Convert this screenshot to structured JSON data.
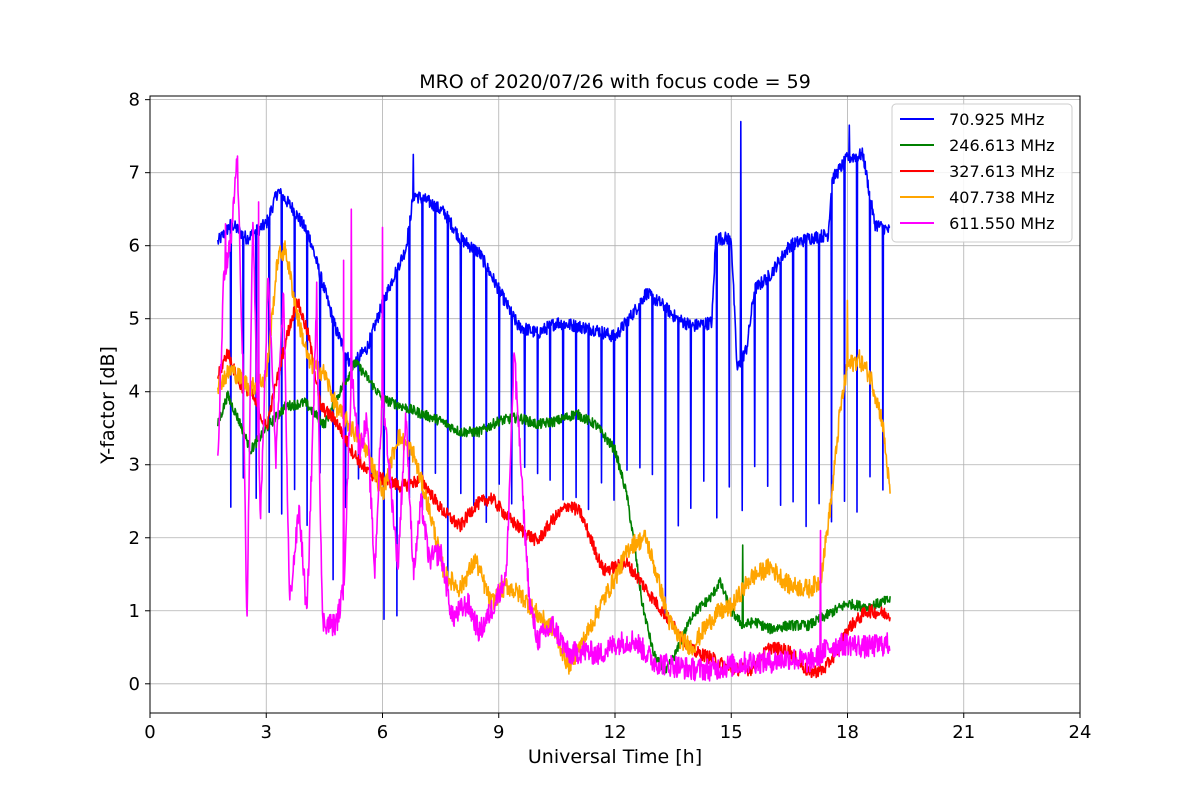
{
  "chart_data": {
    "type": "line",
    "title": "MRO of 2020/07/26 with focus code = 59",
    "xlabel": "Universal Time [h]",
    "ylabel": "Y-factor [dB]",
    "xlim": [
      0,
      24
    ],
    "ylim": [
      -0.4,
      8.05
    ],
    "xticks": [
      0,
      3,
      6,
      9,
      12,
      15,
      18,
      21,
      24
    ],
    "yticks": [
      0,
      1,
      2,
      3,
      4,
      5,
      6,
      7,
      8
    ],
    "grid": true,
    "legend_position": "top-right",
    "series": [
      {
        "name": " 70.925 MHz",
        "color": "#0000ff",
        "noise": 0.09,
        "dips": {
          "start": 1.75,
          "step": 0.33,
          "end": 19.0,
          "floor": 2.6
        },
        "points": [
          [
            1.75,
            6.05
          ],
          [
            2.1,
            6.3
          ],
          [
            2.5,
            6.1
          ],
          [
            3.0,
            6.3
          ],
          [
            3.3,
            6.75
          ],
          [
            3.7,
            6.5
          ],
          [
            4.1,
            6.15
          ],
          [
            4.5,
            5.4
          ],
          [
            4.8,
            4.85
          ],
          [
            5.2,
            4.35
          ],
          [
            5.6,
            4.6
          ],
          [
            6.0,
            5.2
          ],
          [
            6.3,
            5.6
          ],
          [
            6.6,
            5.95
          ],
          [
            6.8,
            6.7
          ],
          [
            7.2,
            6.6
          ],
          [
            7.6,
            6.45
          ],
          [
            8.0,
            6.1
          ],
          [
            8.5,
            5.9
          ],
          [
            9.0,
            5.4
          ],
          [
            9.5,
            4.9
          ],
          [
            10.0,
            4.8
          ],
          [
            10.5,
            4.95
          ],
          [
            11.0,
            4.9
          ],
          [
            11.5,
            4.85
          ],
          [
            12.0,
            4.75
          ],
          [
            12.5,
            5.1
          ],
          [
            12.8,
            5.35
          ],
          [
            13.2,
            5.2
          ],
          [
            13.6,
            5.0
          ],
          [
            14.0,
            4.9
          ],
          [
            14.5,
            4.95
          ],
          [
            14.6,
            6.1
          ],
          [
            15.0,
            6.1
          ],
          [
            15.15,
            4.3
          ],
          [
            15.4,
            4.6
          ],
          [
            15.6,
            5.4
          ],
          [
            16.0,
            5.6
          ],
          [
            16.5,
            6.0
          ],
          [
            17.0,
            6.1
          ],
          [
            17.5,
            6.15
          ],
          [
            17.6,
            6.9
          ],
          [
            18.0,
            7.2
          ],
          [
            18.4,
            7.25
          ],
          [
            18.7,
            6.3
          ],
          [
            19.1,
            6.2
          ]
        ],
        "spikes": [
          [
            15.25,
            7.7
          ],
          [
            18.05,
            7.65
          ],
          [
            6.8,
            7.25
          ]
        ]
      },
      {
        "name": " 246.613 MHz",
        "color": "#008000",
        "noise": 0.07,
        "points": [
          [
            1.75,
            3.55
          ],
          [
            2.0,
            3.95
          ],
          [
            2.3,
            3.6
          ],
          [
            2.6,
            3.2
          ],
          [
            3.0,
            3.5
          ],
          [
            3.5,
            3.8
          ],
          [
            4.0,
            3.85
          ],
          [
            4.5,
            3.55
          ],
          [
            4.9,
            4.0
          ],
          [
            5.3,
            4.4
          ],
          [
            5.6,
            4.2
          ],
          [
            6.0,
            3.9
          ],
          [
            6.5,
            3.8
          ],
          [
            7.0,
            3.7
          ],
          [
            7.5,
            3.6
          ],
          [
            8.0,
            3.45
          ],
          [
            8.5,
            3.45
          ],
          [
            9.0,
            3.6
          ],
          [
            9.5,
            3.65
          ],
          [
            10.0,
            3.55
          ],
          [
            10.5,
            3.6
          ],
          [
            11.0,
            3.7
          ],
          [
            11.5,
            3.55
          ],
          [
            12.0,
            3.2
          ],
          [
            12.3,
            2.6
          ],
          [
            12.5,
            1.9
          ],
          [
            12.7,
            1.1
          ],
          [
            13.0,
            0.4
          ],
          [
            13.3,
            0.15
          ],
          [
            13.6,
            0.45
          ],
          [
            14.0,
            0.95
          ],
          [
            14.5,
            1.2
          ],
          [
            14.7,
            1.4
          ],
          [
            15.0,
            1.0
          ],
          [
            15.3,
            0.8
          ],
          [
            15.6,
            0.85
          ],
          [
            16.0,
            0.75
          ],
          [
            16.5,
            0.8
          ],
          [
            17.0,
            0.8
          ],
          [
            17.5,
            0.95
          ],
          [
            18.0,
            1.1
          ],
          [
            18.5,
            1.05
          ],
          [
            19.1,
            1.15
          ]
        ],
        "spikes": [
          [
            15.3,
            1.9
          ]
        ]
      },
      {
        "name": " 327.613 MHz",
        "color": "#ff0000",
        "noise": 0.09,
        "points": [
          [
            1.75,
            4.2
          ],
          [
            2.0,
            4.55
          ],
          [
            2.3,
            4.1
          ],
          [
            2.6,
            4.0
          ],
          [
            3.0,
            3.5
          ],
          [
            3.5,
            4.7
          ],
          [
            3.8,
            5.25
          ],
          [
            4.1,
            4.75
          ],
          [
            4.4,
            3.8
          ],
          [
            4.8,
            3.6
          ],
          [
            5.2,
            3.2
          ],
          [
            5.6,
            2.9
          ],
          [
            6.0,
            2.8
          ],
          [
            6.5,
            2.7
          ],
          [
            7.0,
            2.8
          ],
          [
            7.5,
            2.4
          ],
          [
            8.0,
            2.15
          ],
          [
            8.4,
            2.45
          ],
          [
            8.8,
            2.55
          ],
          [
            9.2,
            2.3
          ],
          [
            9.6,
            2.1
          ],
          [
            10.0,
            1.95
          ],
          [
            10.4,
            2.25
          ],
          [
            10.8,
            2.45
          ],
          [
            11.1,
            2.35
          ],
          [
            11.4,
            1.95
          ],
          [
            11.7,
            1.55
          ],
          [
            12.0,
            1.6
          ],
          [
            12.3,
            1.65
          ],
          [
            12.6,
            1.45
          ],
          [
            13.0,
            1.15
          ],
          [
            13.5,
            0.8
          ],
          [
            14.0,
            0.45
          ],
          [
            14.5,
            0.35
          ],
          [
            15.0,
            0.2
          ],
          [
            15.5,
            0.2
          ],
          [
            16.0,
            0.5
          ],
          [
            16.5,
            0.45
          ],
          [
            17.0,
            0.15
          ],
          [
            17.4,
            0.2
          ],
          [
            17.8,
            0.5
          ],
          [
            18.0,
            0.75
          ],
          [
            18.5,
            1.0
          ],
          [
            19.1,
            0.95
          ]
        ]
      },
      {
        "name": " 407.738 MHz",
        "color": "#ffa500",
        "noise": 0.13,
        "points": [
          [
            1.75,
            4.1
          ],
          [
            2.1,
            4.3
          ],
          [
            2.6,
            4.05
          ],
          [
            3.0,
            4.2
          ],
          [
            3.3,
            5.85
          ],
          [
            3.5,
            5.95
          ],
          [
            3.8,
            5.05
          ],
          [
            4.1,
            4.4
          ],
          [
            4.5,
            4.25
          ],
          [
            4.8,
            3.8
          ],
          [
            5.2,
            3.5
          ],
          [
            5.6,
            3.2
          ],
          [
            6.0,
            2.6
          ],
          [
            6.4,
            3.4
          ],
          [
            6.8,
            3.15
          ],
          [
            7.2,
            2.4
          ],
          [
            7.6,
            1.5
          ],
          [
            8.0,
            1.3
          ],
          [
            8.4,
            1.7
          ],
          [
            8.8,
            1.1
          ],
          [
            9.2,
            1.35
          ],
          [
            9.6,
            1.2
          ],
          [
            10.0,
            0.95
          ],
          [
            10.4,
            0.75
          ],
          [
            10.8,
            0.25
          ],
          [
            11.2,
            0.6
          ],
          [
            11.6,
            1.05
          ],
          [
            12.0,
            1.45
          ],
          [
            12.4,
            1.9
          ],
          [
            12.8,
            2.0
          ],
          [
            13.1,
            1.45
          ],
          [
            13.4,
            0.85
          ],
          [
            13.7,
            0.6
          ],
          [
            14.0,
            0.5
          ],
          [
            14.3,
            0.75
          ],
          [
            14.6,
            0.95
          ],
          [
            15.0,
            1.05
          ],
          [
            15.5,
            1.45
          ],
          [
            16.0,
            1.6
          ],
          [
            16.5,
            1.35
          ],
          [
            17.0,
            1.3
          ],
          [
            17.3,
            1.4
          ],
          [
            17.6,
            2.6
          ],
          [
            17.8,
            3.7
          ],
          [
            18.0,
            4.35
          ],
          [
            18.3,
            4.45
          ],
          [
            18.6,
            4.2
          ],
          [
            18.9,
            3.6
          ],
          [
            19.1,
            2.6
          ]
        ],
        "spikes": [
          [
            18.0,
            5.25
          ]
        ]
      },
      {
        "name": " 611.550 MHz",
        "color": "#ff00ff",
        "noise": 0.16,
        "points": [
          [
            1.75,
            3.0
          ],
          [
            1.9,
            5.5
          ],
          [
            2.1,
            6.1
          ],
          [
            2.25,
            7.25
          ],
          [
            2.4,
            4.3
          ],
          [
            2.5,
            0.7
          ],
          [
            2.65,
            6.4
          ],
          [
            2.85,
            2.2
          ],
          [
            3.05,
            5.6
          ],
          [
            3.25,
            3.1
          ],
          [
            3.45,
            5.4
          ],
          [
            3.6,
            1.1
          ],
          [
            3.85,
            2.4
          ],
          [
            4.05,
            0.9
          ],
          [
            4.3,
            5.2
          ],
          [
            4.45,
            0.85
          ],
          [
            4.8,
            0.8
          ],
          [
            5.0,
            1.3
          ],
          [
            5.2,
            4.3
          ],
          [
            5.4,
            3.2
          ],
          [
            5.6,
            3.6
          ],
          [
            5.8,
            1.5
          ],
          [
            6.0,
            4.0
          ],
          [
            6.2,
            2.8
          ],
          [
            6.4,
            1.6
          ],
          [
            6.6,
            3.7
          ],
          [
            6.8,
            1.5
          ],
          [
            7.0,
            2.5
          ],
          [
            7.2,
            1.7
          ],
          [
            7.5,
            1.8
          ],
          [
            7.8,
            0.9
          ],
          [
            8.2,
            1.1
          ],
          [
            8.5,
            0.7
          ],
          [
            8.8,
            1.0
          ],
          [
            9.2,
            1.5
          ],
          [
            9.4,
            4.6
          ],
          [
            9.6,
            2.7
          ],
          [
            9.8,
            1.1
          ],
          [
            10.0,
            0.6
          ],
          [
            10.4,
            0.8
          ],
          [
            10.8,
            0.4
          ],
          [
            11.2,
            0.45
          ],
          [
            11.6,
            0.4
          ],
          [
            12.0,
            0.55
          ],
          [
            12.5,
            0.6
          ],
          [
            13.0,
            0.3
          ],
          [
            13.5,
            0.25
          ],
          [
            14.0,
            0.2
          ],
          [
            14.5,
            0.2
          ],
          [
            15.0,
            0.25
          ],
          [
            15.5,
            0.3
          ],
          [
            16.0,
            0.3
          ],
          [
            16.5,
            0.35
          ],
          [
            17.0,
            0.3
          ],
          [
            17.3,
            0.4
          ],
          [
            17.5,
            0.5
          ],
          [
            18.0,
            0.55
          ],
          [
            18.5,
            0.5
          ],
          [
            19.1,
            0.55
          ]
        ],
        "spikes": [
          [
            5.2,
            6.5
          ],
          [
            6.0,
            6.25
          ],
          [
            5.0,
            5.8
          ],
          [
            17.3,
            2.1
          ],
          [
            4.3,
            5.5
          ],
          [
            2.8,
            6.6
          ],
          [
            9.45,
            3.9
          ],
          [
            1.95,
            6.3
          ]
        ]
      }
    ]
  }
}
